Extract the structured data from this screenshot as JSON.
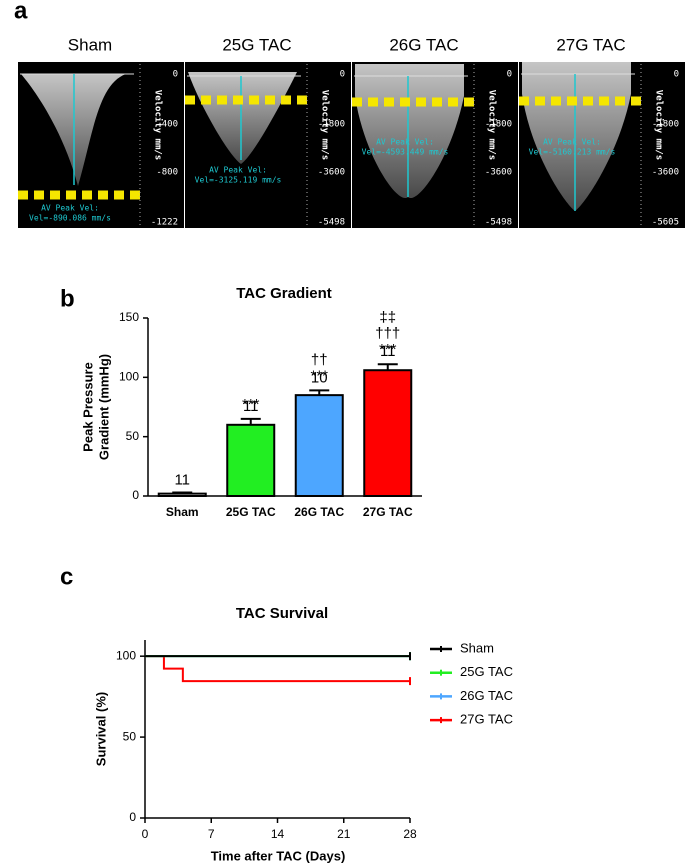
{
  "panel_labels": [
    "a",
    "b",
    "c"
  ],
  "doppler": {
    "images": [
      {
        "title": "Sham",
        "axis_label": "Velocity mm/s",
        "ticks": [
          "0",
          "-400",
          "-800",
          "-1222"
        ],
        "annotation": [
          "AV Peak Vel:",
          "Vel=-890.086 mm/s"
        ]
      },
      {
        "title": "25G TAC",
        "axis_label": "Velocity mm/s",
        "ticks": [
          "0",
          "-1800",
          "-3600",
          "-5498"
        ],
        "annotation": [
          "AV Peak Vel:",
          "Vel=-3125.119 mm/s"
        ]
      },
      {
        "title": "26G TAC",
        "axis_label": "Velocity mm/s",
        "ticks": [
          "0",
          "-1800",
          "-3600",
          "-5498"
        ],
        "annotation": [
          "AV Peak Vel:",
          "Vel=-4593.449 mm/s"
        ]
      },
      {
        "title": "27G TAC",
        "axis_label": "Velocity mm/s",
        "ticks": [
          "0",
          "-1800",
          "-3600",
          "-5605"
        ],
        "annotation": [
          "AV Peak Vel:",
          "Vel=-5160.213 mm/s"
        ]
      }
    ]
  },
  "chart_data": [
    {
      "type": "bar",
      "title": "TAC Gradient",
      "y_label": [
        "Peak Pressure",
        "Gradient (mmHg)"
      ],
      "categories": [
        "Sham",
        "25G TAC",
        "26G TAC",
        "27G TAC"
      ],
      "values": [
        2,
        60,
        85,
        106
      ],
      "errors": [
        1,
        5,
        4,
        5
      ],
      "colors": [
        "#ffffff",
        "#22ee22",
        "#4da6ff",
        "#ff0000"
      ],
      "sample_sizes": [
        11,
        11,
        10,
        11
      ],
      "annotations": [
        null,
        [
          "***"
        ],
        [
          "††",
          "***"
        ],
        [
          "‡‡",
          "†††",
          "***"
        ]
      ],
      "ylim": [
        0,
        150
      ],
      "yticks": [
        0,
        50,
        100,
        150
      ]
    },
    {
      "type": "line",
      "step": true,
      "title": "TAC Survival",
      "x_label": "Time after TAC (Days)",
      "y_label": "Survival (%)",
      "xlim": [
        0,
        28
      ],
      "xticks": [
        0,
        7,
        14,
        21,
        28
      ],
      "ylim": [
        0,
        110
      ],
      "yticks": [
        0,
        50,
        100
      ],
      "legend": "right",
      "series": [
        {
          "name": "Sham",
          "color": "#000000",
          "x": [
            0,
            28
          ],
          "values": [
            100,
            100
          ]
        },
        {
          "name": "25G TAC",
          "color": "#22ee22",
          "x": [
            0,
            28
          ],
          "values": [
            100,
            100
          ]
        },
        {
          "name": "26G TAC",
          "color": "#4da6ff",
          "x": [
            0,
            28
          ],
          "values": [
            100,
            100
          ]
        },
        {
          "name": "27G TAC",
          "color": "#ff0000",
          "x": [
            0,
            2,
            4,
            28
          ],
          "values": [
            100,
            92.3,
            84.6,
            84.6
          ]
        }
      ]
    }
  ]
}
